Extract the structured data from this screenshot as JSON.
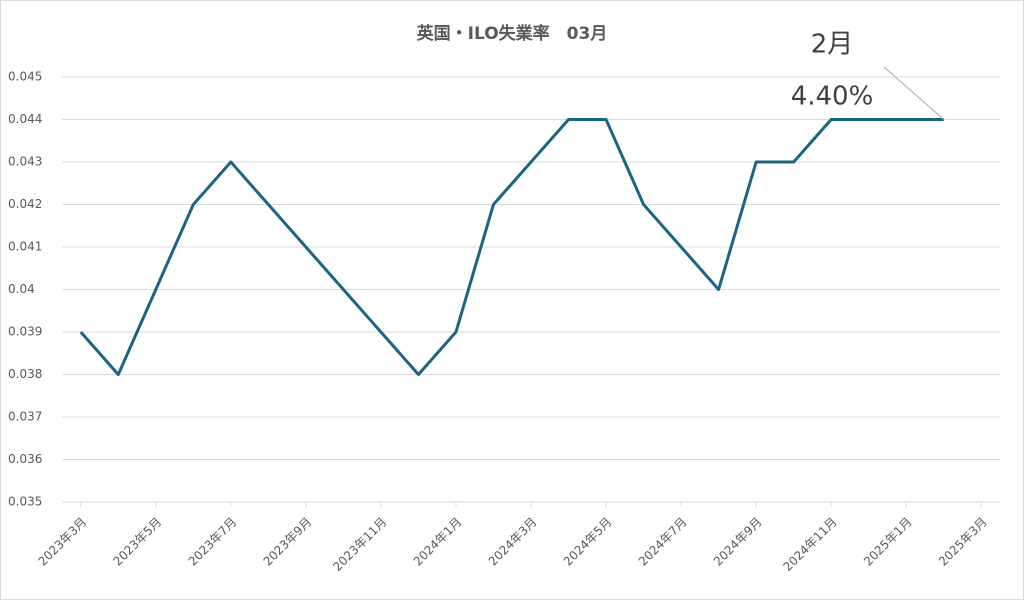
{
  "chart_data": {
    "type": "line",
    "title": "英国・ILO失業率　03月",
    "x": [
      "2023-03",
      "2023-04",
      "2023-06",
      "2023-07",
      "2023-12",
      "2024-01",
      "2024-02",
      "2024-04",
      "2024-05",
      "2024-06",
      "2024-08",
      "2024-09",
      "2024-10",
      "2024-11",
      "2025-02"
    ],
    "values": [
      0.039,
      0.038,
      0.042,
      0.043,
      0.038,
      0.039,
      0.042,
      0.044,
      0.044,
      0.042,
      0.04,
      0.043,
      0.043,
      0.044,
      0.044
    ],
    "color": "#1d6383",
    "xlim": [
      "2023-03",
      "2025-03"
    ],
    "xticks": [
      {
        "value": "2023-03",
        "label": "2023年3月"
      },
      {
        "value": "2023-05",
        "label": "2023年5月"
      },
      {
        "value": "2023-07",
        "label": "2023年7月"
      },
      {
        "value": "2023-09",
        "label": "2023年9月"
      },
      {
        "value": "2023-11",
        "label": "2023年11月"
      },
      {
        "value": "2024-01",
        "label": "2024年1月"
      },
      {
        "value": "2024-03",
        "label": "2024年3月"
      },
      {
        "value": "2024-05",
        "label": "2024年5月"
      },
      {
        "value": "2024-07",
        "label": "2024年7月"
      },
      {
        "value": "2024-09",
        "label": "2024年9月"
      },
      {
        "value": "2024-11",
        "label": "2024年11月"
      },
      {
        "value": "2025-01",
        "label": "2025年1月"
      },
      {
        "value": "2025-03",
        "label": "2025年3月"
      }
    ],
    "ylim": [
      0.035,
      0.045
    ],
    "yticks": [
      0.035,
      0.036,
      0.037,
      0.038,
      0.039,
      0.04,
      0.041,
      0.042,
      0.043,
      0.044,
      0.045
    ],
    "grid": true,
    "annotation": {
      "lines": [
        "2月",
        "4.40%"
      ]
    }
  }
}
